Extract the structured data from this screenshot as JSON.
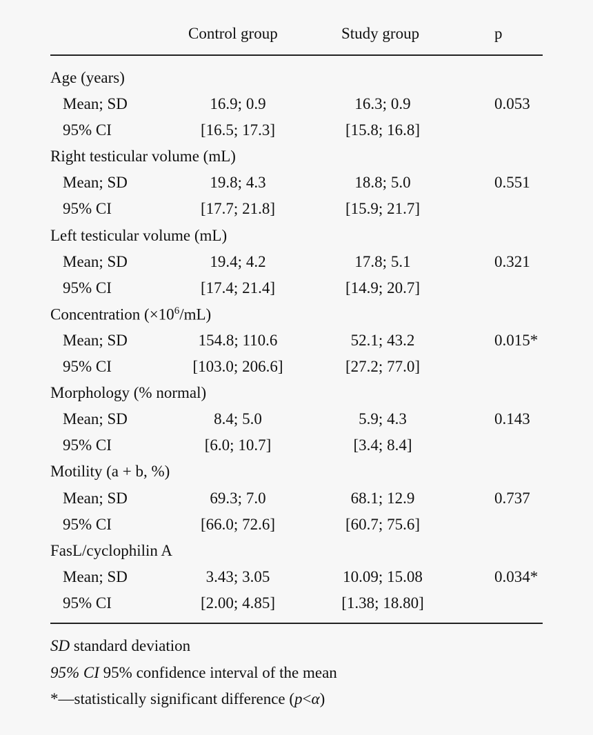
{
  "header": {
    "col_control": "Control group",
    "col_study": "Study group",
    "col_p": "p"
  },
  "sections": [
    {
      "title": "Age (years)",
      "rows": [
        {
          "label": "Mean; SD",
          "control": "16.9; 0.9",
          "study": "16.3; 0.9",
          "p": "0.053"
        },
        {
          "label": "95% CI",
          "control": "[16.5; 17.3]",
          "study": "[15.8; 16.8]",
          "p": ""
        }
      ]
    },
    {
      "title": "Right testicular volume (mL)",
      "rows": [
        {
          "label": "Mean; SD",
          "control": "19.8; 4.3",
          "study": "18.8; 5.0",
          "p": "0.551"
        },
        {
          "label": "95% CI",
          "control": "[17.7; 21.8]",
          "study": "[15.9; 21.7]",
          "p": ""
        }
      ]
    },
    {
      "title": "Left testicular volume (mL)",
      "rows": [
        {
          "label": "Mean; SD",
          "control": "19.4; 4.2",
          "study": "17.8; 5.1",
          "p": "0.321"
        },
        {
          "label": "95% CI",
          "control": "[17.4; 21.4]",
          "study": "[14.9; 20.7]",
          "p": ""
        }
      ]
    },
    {
      "title": "Concentration (×10",
      "title_sup": "6",
      "title_suffix": "/mL)",
      "rows": [
        {
          "label": "Mean; SD",
          "control": "154.8; 110.6",
          "study": "52.1; 43.2",
          "p": "0.015*"
        },
        {
          "label": "95% CI",
          "control": "[103.0; 206.6]",
          "study": "[27.2; 77.0]",
          "p": ""
        }
      ]
    },
    {
      "title": "Morphology (% normal)",
      "rows": [
        {
          "label": "Mean; SD",
          "control": "8.4; 5.0",
          "study": "5.9; 4.3",
          "p": "0.143"
        },
        {
          "label": "95% CI",
          "control": "[6.0; 10.7]",
          "study": "[3.4; 8.4]",
          "p": ""
        }
      ]
    },
    {
      "title": "Motility (a + b, %)",
      "rows": [
        {
          "label": "Mean; SD",
          "control": "69.3; 7.0",
          "study": "68.1; 12.9",
          "p": "0.737"
        },
        {
          "label": "95% CI",
          "control": "[66.0; 72.6]",
          "study": "[60.7; 75.6]",
          "p": ""
        }
      ]
    },
    {
      "title": "FasL/cyclophilin A",
      "rows": [
        {
          "label": "Mean; SD",
          "control": "3.43; 3.05",
          "study": "10.09; 15.08",
          "p": "0.034*"
        },
        {
          "label": "95% CI",
          "control": "[2.00; 4.85]",
          "study": "[1.38; 18.80]",
          "p": ""
        }
      ]
    }
  ],
  "footnotes": {
    "sd_abbr": "SD",
    "sd_text": " standard deviation",
    "ci_abbr": "95% CI",
    "ci_text": " 95% confidence interval of the mean",
    "sig_text": "*—statistically significant difference (",
    "sig_p": "p",
    "sig_lt": "<",
    "sig_alpha": "α",
    "sig_close": ")"
  }
}
